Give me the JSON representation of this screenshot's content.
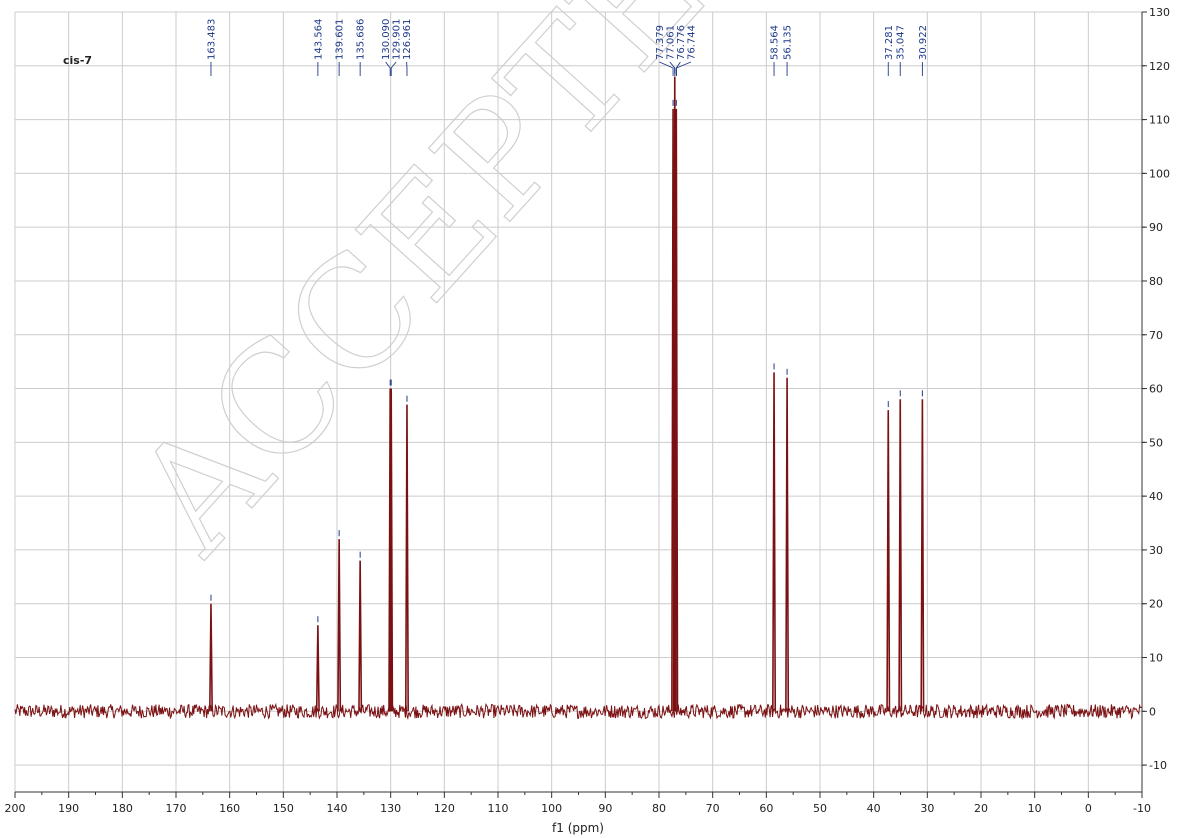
{
  "chart_data": {
    "type": "line",
    "title": "",
    "compound_label": "cis-7",
    "xlabel": "f1 (ppm)",
    "ylabel": "",
    "xlim": [
      200,
      -10
    ],
    "ylim": [
      -15,
      130
    ],
    "x_ticks": [
      200,
      190,
      180,
      170,
      160,
      150,
      140,
      130,
      120,
      110,
      100,
      90,
      80,
      70,
      60,
      50,
      40,
      30,
      20,
      10,
      0,
      -10
    ],
    "y_ticks": [
      130,
      120,
      110,
      100,
      90,
      80,
      70,
      60,
      50,
      40,
      30,
      20,
      10,
      0,
      -10
    ],
    "grid": true,
    "watermark": "ACCEPTED",
    "baseline": 0,
    "noise_amplitude": 1.3,
    "series": [
      {
        "color": "#7b1113",
        "peaks": [
          {
            "ppm": 163.483,
            "height": 20
          },
          {
            "ppm": 143.564,
            "height": 16
          },
          {
            "ppm": 139.601,
            "height": 32
          },
          {
            "ppm": 135.686,
            "height": 28
          },
          {
            "ppm": 130.09,
            "height": 60
          },
          {
            "ppm": 129.901,
            "height": 60
          },
          {
            "ppm": 126.961,
            "height": 57
          },
          {
            "ppm": 77.379,
            "height": 112
          },
          {
            "ppm": 77.061,
            "height": 118
          },
          {
            "ppm": 76.776,
            "height": 112
          },
          {
            "ppm": 58.564,
            "height": 63
          },
          {
            "ppm": 56.135,
            "height": 62
          },
          {
            "ppm": 37.281,
            "height": 56
          },
          {
            "ppm": 35.047,
            "height": 58
          },
          {
            "ppm": 30.922,
            "height": 58
          }
        ]
      }
    ],
    "peak_labels": [
      {
        "text": "163.483",
        "ppm": 163.483
      },
      {
        "text": "143.564",
        "ppm": 143.564
      },
      {
        "text": "139.601",
        "ppm": 139.601
      },
      {
        "text": "135.686",
        "ppm": 135.686
      },
      {
        "text": "130.090",
        "ppm": 130.09
      },
      {
        "text": "129.901",
        "ppm": 129.901
      },
      {
        "text": "126.961",
        "ppm": 126.961
      },
      {
        "text": "77.379",
        "ppm": 77.379
      },
      {
        "text": "77.061",
        "ppm": 77.061
      },
      {
        "text": "76.776",
        "ppm": 76.776
      },
      {
        "text": "76.744",
        "ppm": 76.744
      },
      {
        "text": "58.564",
        "ppm": 58.564
      },
      {
        "text": "56.135",
        "ppm": 56.135
      },
      {
        "text": "37.281",
        "ppm": 37.281
      },
      {
        "text": "35.047",
        "ppm": 35.047
      },
      {
        "text": "30.922",
        "ppm": 30.922
      }
    ]
  },
  "colors": {
    "spectrum": "#7b1113",
    "peak_label": "#1f3a8a",
    "grid": "#cccccc",
    "axis": "#333333"
  }
}
